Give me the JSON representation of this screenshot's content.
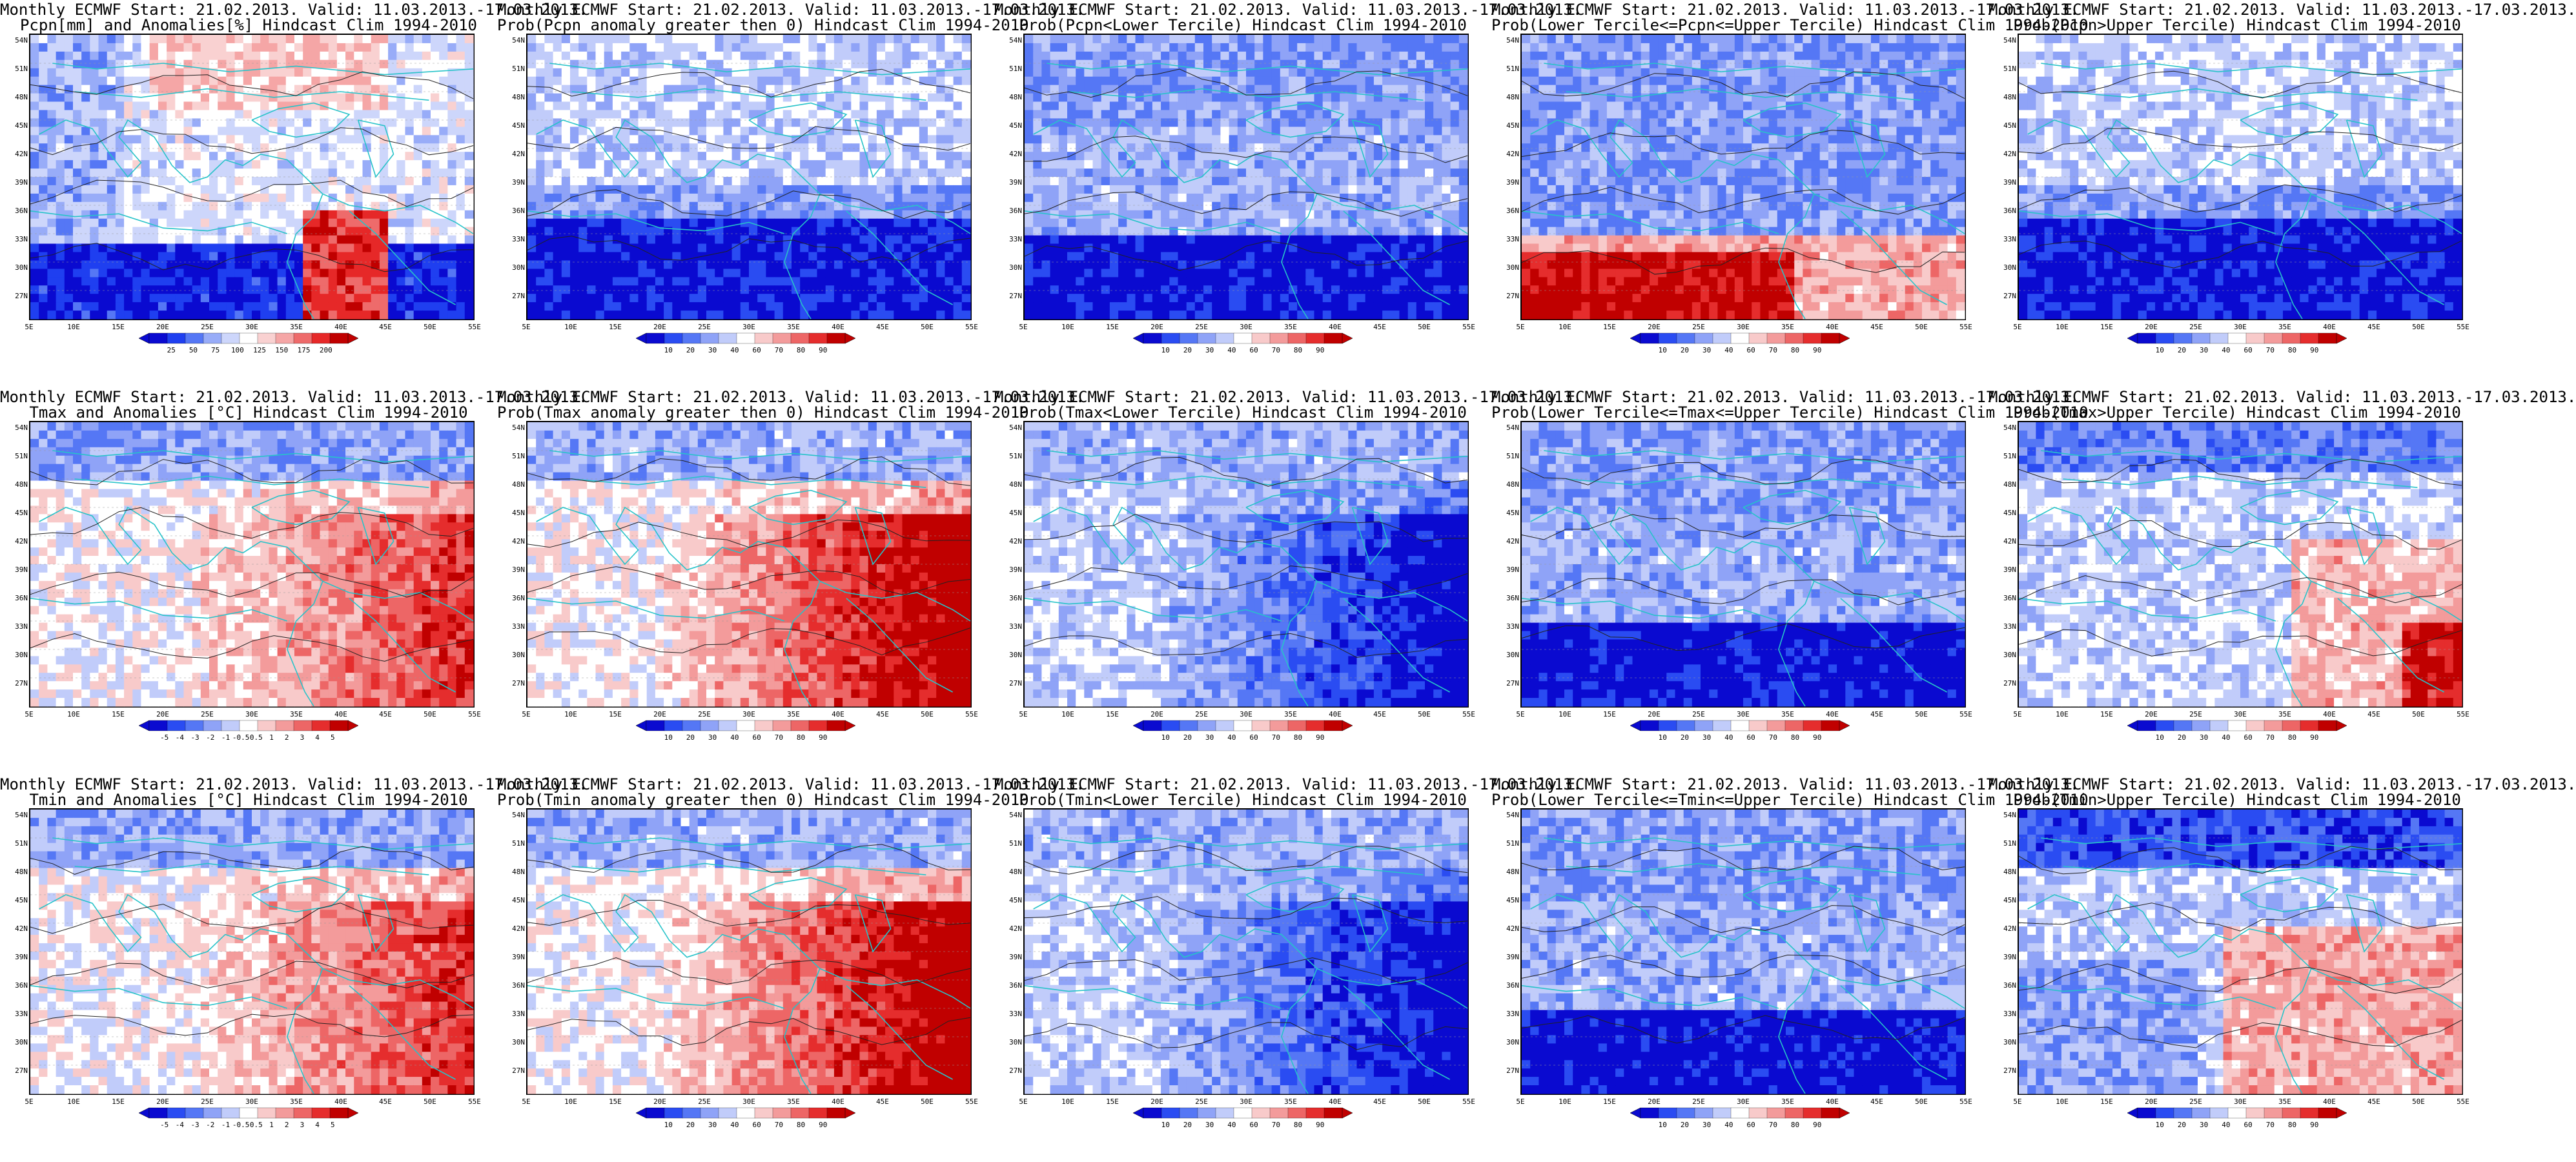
{
  "lat_labels": [
    "54N",
    "51N",
    "48N",
    "45N",
    "42N",
    "39N",
    "36N",
    "33N",
    "30N",
    "27N"
  ],
  "lon_labels": [
    "5E",
    "10E",
    "15E",
    "20E",
    "25E",
    "30E",
    "35E",
    "40E",
    "45E",
    "50E",
    "55E"
  ],
  "colors": {
    "land_border": "#27c3c9",
    "contour": "#222222"
  },
  "palettes": {
    "precip": [
      "#0a0ad0",
      "#1f3ff0",
      "#5577f5",
      "#98acf8",
      "#cdd6fb",
      "#ffffff",
      "#f9d1d1",
      "#f5a6a6",
      "#ee6b6b",
      "#e62828",
      "#c00000"
    ],
    "anomaly": [
      "#0a0ad0",
      "#2a4cf2",
      "#5577f5",
      "#8fa3f7",
      "#c1ccfa",
      "#ffffff",
      "#f8caca",
      "#f39b9b",
      "#ed6666",
      "#e52d2d",
      "#c00000"
    ],
    "prob": [
      "#0a0ad0",
      "#2a4cf2",
      "#5577f5",
      "#8fa3f7",
      "#c1ccfa",
      "#ffffff",
      "#f8caca",
      "#f39b9b",
      "#ed6666",
      "#e52d2d",
      "#c00000"
    ]
  },
  "panels": [
    {
      "id": "pcpn-anom",
      "title1": "Monthly ECMWF Start: 21.02.2013. Valid: 11.03.2013.-17.03.2013.",
      "title2": "Pcpn[mm] and Anomalies[%] Hindcast Clim 1994-2010",
      "palette": "precip",
      "ticks": [
        "25",
        "50",
        "75",
        "100",
        "125",
        "150",
        "175",
        "200"
      ],
      "pattern": "pcpn-anom"
    },
    {
      "id": "pcpn-prob-pos",
      "title1": "Monthly ECMWF Start: 21.02.2013. Valid: 11.03.2013.-17.03.2013.",
      "title2": "Prob(Pcpn anomaly greater then 0) Hindcast Clim 1994-2010",
      "palette": "prob",
      "ticks": [
        "10",
        "20",
        "30",
        "40",
        "60",
        "70",
        "80",
        "90"
      ],
      "pattern": "south-blue"
    },
    {
      "id": "pcpn-prob-lower",
      "title1": "Monthly ECMWF Start: 21.02.2013. Valid: 11.03.2013.-17.03.2013.",
      "title2": "Prob(Pcpn<Lower Tercile) Hindcast Clim 1994-2010",
      "palette": "prob",
      "ticks": [
        "10",
        "20",
        "30",
        "40",
        "60",
        "70",
        "80",
        "90"
      ],
      "pattern": "mostly-blue"
    },
    {
      "id": "pcpn-prob-mid",
      "title1": "Monthly ECMWF Start: 21.02.2013. Valid: 11.03.2013.-17.03.2013.",
      "title2": "Prob(Lower Tercile<=Pcpn<=Upper Tercile) Hindcast Clim 1994-2010",
      "palette": "prob",
      "ticks": [
        "10",
        "20",
        "30",
        "40",
        "60",
        "70",
        "80",
        "90"
      ],
      "pattern": "south-red"
    },
    {
      "id": "pcpn-prob-upper",
      "title1": "Monthly ECMWF Start: 21.02.2013. Valid: 11.03.2013.-17.03.2013.",
      "title2": "Prob(Pcpn>Upper Tercile) Hindcast Clim 1994-2010",
      "palette": "prob",
      "ticks": [
        "10",
        "20",
        "30",
        "40",
        "60",
        "70",
        "80",
        "90"
      ],
      "pattern": "south-blue"
    },
    {
      "id": "tmax-anom",
      "title1": "Monthly ECMWF Start: 21.02.2013. Valid: 11.03.2013.-17.03.2013.",
      "title2": "Tmax and Anomalies [°C] Hindcast Clim 1994-2010",
      "palette": "anomaly",
      "ticks": [
        "-5",
        "-4",
        "-3",
        "-2",
        "-1",
        "-0.5",
        "0.5",
        "1",
        "2",
        "3",
        "4",
        "5"
      ],
      "pattern": "east-red"
    },
    {
      "id": "tmax-prob-pos",
      "title1": "Monthly ECMWF Start: 21.02.2013. Valid: 11.03.2013.-17.03.2013.",
      "title2": "Prob(Tmax anomaly greater then 0) Hindcast Clim 1994-2010",
      "palette": "prob",
      "ticks": [
        "10",
        "20",
        "30",
        "40",
        "60",
        "70",
        "80",
        "90"
      ],
      "pattern": "east-red-strong"
    },
    {
      "id": "tmax-prob-lower",
      "title1": "Monthly ECMWF Start: 21.02.2013. Valid: 11.03.2013.-17.03.2013.",
      "title2": "Prob(Tmax<Lower Tercile) Hindcast Clim 1994-2010",
      "palette": "prob",
      "ticks": [
        "10",
        "20",
        "30",
        "40",
        "60",
        "70",
        "80",
        "90"
      ],
      "pattern": "east-blue"
    },
    {
      "id": "tmax-prob-mid",
      "title1": "Monthly ECMWF Start: 21.02.2013. Valid: 11.03.2013.-17.03.2013.",
      "title2": "Prob(Lower Tercile<=Tmax<=Upper Tercile) Hindcast Clim 1994-2010",
      "palette": "prob",
      "ticks": [
        "10",
        "20",
        "30",
        "40",
        "60",
        "70",
        "80",
        "90"
      ],
      "pattern": "mostly-blue"
    },
    {
      "id": "tmax-prob-upper",
      "title1": "Monthly ECMWF Start: 21.02.2013. Valid: 11.03.2013.-17.03.2013.",
      "title2": "Prob(Tmax>Upper Tercile) Hindcast Clim 1994-2010",
      "palette": "prob",
      "ticks": [
        "10",
        "20",
        "30",
        "40",
        "60",
        "70",
        "80",
        "90"
      ],
      "pattern": "upper-light"
    },
    {
      "id": "tmin-anom",
      "title1": "Monthly ECMWF Start: 21.02.2013. Valid: 11.03.2013.-17.03.2013.",
      "title2": "Tmin and Anomalies [°C] Hindcast Clim 1994-2010",
      "palette": "anomaly",
      "ticks": [
        "-5",
        "-4",
        "-3",
        "-2",
        "-1",
        "-0.5",
        "0.5",
        "1",
        "2",
        "3",
        "4",
        "5"
      ],
      "pattern": "east-red"
    },
    {
      "id": "tmin-prob-pos",
      "title1": "Monthly ECMWF Start: 21.02.2013. Valid: 11.03.2013.-17.03.2013.",
      "title2": "Prob(Tmin anomaly greater then 0) Hindcast Clim 1994-2010",
      "palette": "prob",
      "ticks": [
        "10",
        "20",
        "30",
        "40",
        "60",
        "70",
        "80",
        "90"
      ],
      "pattern": "east-red-strong"
    },
    {
      "id": "tmin-prob-lower",
      "title1": "Monthly ECMWF Start: 21.02.2013. Valid: 11.03.2013.-17.03.2013.",
      "title2": "Prob(Tmin<Lower Tercile) Hindcast Clim 1994-2010",
      "palette": "prob",
      "ticks": [
        "10",
        "20",
        "30",
        "40",
        "60",
        "70",
        "80",
        "90"
      ],
      "pattern": "east-blue"
    },
    {
      "id": "tmin-prob-mid",
      "title1": "Monthly ECMWF Start: 21.02.2013. Valid: 11.03.2013.-17.03.2013.",
      "title2": "Prob(Lower Tercile<=Tmin<=Upper Tercile) Hindcast Clim 1994-2010",
      "palette": "prob",
      "ticks": [
        "10",
        "20",
        "30",
        "40",
        "60",
        "70",
        "80",
        "90"
      ],
      "pattern": "mostly-blue"
    },
    {
      "id": "tmin-prob-upper",
      "title1": "Monthly ECMWF Start: 21.02.2013. Valid: 11.03.2013.-17.03.2013.",
      "title2": "Prob(Tmin>Upper Tercile) Hindcast Clim 1994-2010",
      "palette": "prob",
      "ticks": [
        "10",
        "20",
        "30",
        "40",
        "60",
        "70",
        "80",
        "90"
      ],
      "pattern": "upper-mixed"
    }
  ]
}
